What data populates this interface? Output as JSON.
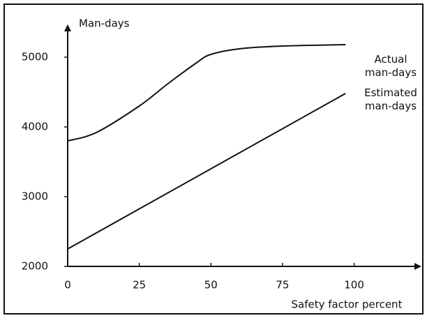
{
  "chart_data": {
    "type": "line",
    "y_label": "Man-days",
    "x_label": "Safety factor percent",
    "series": [
      {
        "name": "Actual man-days",
        "color": "#111111",
        "x": [
          0,
          10,
          25,
          35,
          45,
          50,
          60,
          75,
          97
        ],
        "values": [
          3800,
          3920,
          4300,
          4620,
          4920,
          5040,
          5120,
          5160,
          5180
        ]
      },
      {
        "name": "Estimated man-days",
        "color": "#111111",
        "x": [
          0,
          97
        ],
        "values": [
          2250,
          4480
        ]
      }
    ],
    "xlim": [
      0,
      123
    ],
    "xticks": [
      0,
      25,
      50,
      75,
      100
    ],
    "ylim": [
      2000,
      5450
    ],
    "yticks": [
      2000,
      3000,
      4000,
      5000
    ],
    "grid": false
  }
}
